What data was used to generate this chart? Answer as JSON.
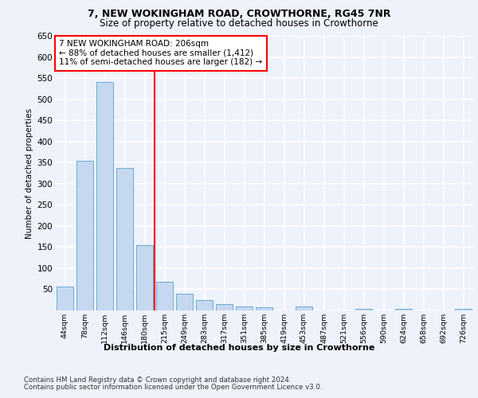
{
  "title1": "7, NEW WOKINGHAM ROAD, CROWTHORNE, RG45 7NR",
  "title2": "Size of property relative to detached houses in Crowthorne",
  "xlabel": "Distribution of detached houses by size in Crowthorne",
  "ylabel": "Number of detached properties",
  "bar_labels": [
    "44sqm",
    "78sqm",
    "112sqm",
    "146sqm",
    "180sqm",
    "215sqm",
    "249sqm",
    "283sqm",
    "317sqm",
    "351sqm",
    "385sqm",
    "419sqm",
    "453sqm",
    "487sqm",
    "521sqm",
    "556sqm",
    "590sqm",
    "624sqm",
    "658sqm",
    "692sqm",
    "726sqm"
  ],
  "bar_values": [
    57,
    355,
    540,
    337,
    155,
    67,
    40,
    24,
    16,
    10,
    7,
    0,
    9,
    0,
    0,
    4,
    0,
    4,
    0,
    0,
    4
  ],
  "bar_color": "#c5d8f0",
  "bar_edgecolor": "#6aabd2",
  "property_line_x": 4.5,
  "property_line_color": "red",
  "annotation_text": "7 NEW WOKINGHAM ROAD: 206sqm\n← 88% of detached houses are smaller (1,412)\n11% of semi-detached houses are larger (182) →",
  "ylim": [
    0,
    650
  ],
  "yticks": [
    0,
    50,
    100,
    150,
    200,
    250,
    300,
    350,
    400,
    450,
    500,
    550,
    600,
    650
  ],
  "footer1": "Contains HM Land Registry data © Crown copyright and database right 2024.",
  "footer2": "Contains public sector information licensed under the Open Government Licence v3.0.",
  "bg_color": "#eef2fb",
  "plot_bg_color": "#eef2fb"
}
